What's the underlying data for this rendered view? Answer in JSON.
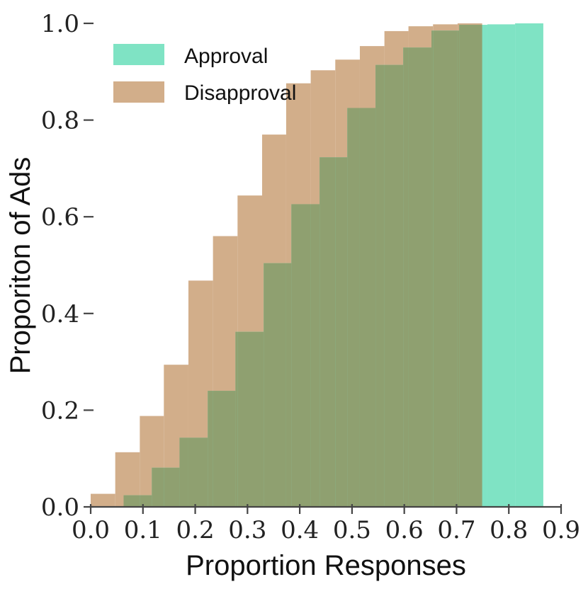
{
  "chart_data": {
    "type": "area",
    "xlabel": "Proportion Responses",
    "ylabel": "Proporiton of Ads",
    "xlim": [
      0.0,
      0.9
    ],
    "ylim": [
      0.0,
      1.0
    ],
    "xticks": [
      "0.0",
      "0.1",
      "0.2",
      "0.3",
      "0.4",
      "0.5",
      "0.6",
      "0.7",
      "0.8",
      "0.9"
    ],
    "yticks": [
      "0.0",
      "0.2",
      "0.4",
      "0.6",
      "0.8",
      "1.0"
    ],
    "grid": false,
    "legend_position": "top-left",
    "overlap_color": "#8fa070",
    "series": [
      {
        "name": "Approval",
        "color": "#7fe3c4",
        "type": "step",
        "edges": [
          0.063,
          0.117,
          0.17,
          0.224,
          0.277,
          0.331,
          0.384,
          0.438,
          0.491,
          0.545,
          0.598,
          0.652,
          0.705,
          0.759,
          0.812,
          0.866
        ],
        "values": [
          0.024,
          0.081,
          0.143,
          0.24,
          0.362,
          0.504,
          0.626,
          0.723,
          0.825,
          0.914,
          0.95,
          0.985,
          0.997,
          0.998,
          1.0
        ]
      },
      {
        "name": "Disapproval",
        "color": "#d2ae8a",
        "type": "step",
        "edges": [
          0.0,
          0.047,
          0.094,
          0.14,
          0.187,
          0.234,
          0.281,
          0.328,
          0.374,
          0.421,
          0.468,
          0.515,
          0.562,
          0.608,
          0.655,
          0.702,
          0.749
        ],
        "values": [
          0.027,
          0.113,
          0.188,
          0.294,
          0.468,
          0.56,
          0.644,
          0.77,
          0.876,
          0.903,
          0.925,
          0.953,
          0.984,
          0.994,
          0.998,
          1.0
        ]
      }
    ]
  }
}
